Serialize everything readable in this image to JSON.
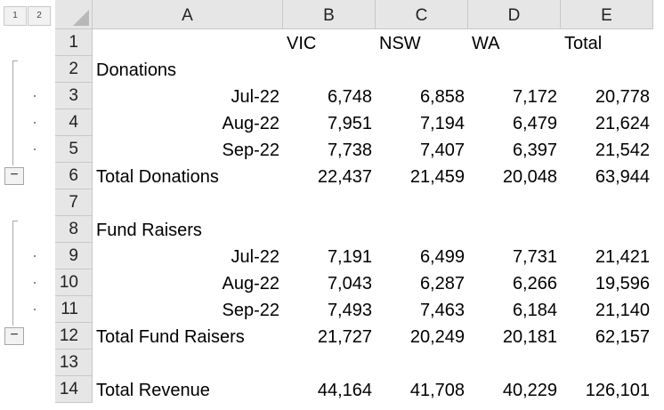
{
  "outline": {
    "level_buttons": [
      "1",
      "2"
    ],
    "collapse_symbol": "−"
  },
  "columns": [
    "A",
    "B",
    "C",
    "D",
    "E"
  ],
  "rows": [
    {
      "num": "1",
      "a": "",
      "b": "VIC",
      "c": "NSW",
      "d": "WA",
      "e": "Total"
    },
    {
      "num": "2",
      "a": "Donations",
      "b": "",
      "c": "",
      "d": "",
      "e": ""
    },
    {
      "num": "3",
      "a": "Jul-22",
      "b": "6,748",
      "c": "6,858",
      "d": "7,172",
      "e": "20,778"
    },
    {
      "num": "4",
      "a": "Aug-22",
      "b": "7,951",
      "c": "7,194",
      "d": "6,479",
      "e": "21,624"
    },
    {
      "num": "5",
      "a": "Sep-22",
      "b": "7,738",
      "c": "7,407",
      "d": "6,397",
      "e": "21,542"
    },
    {
      "num": "6",
      "a": "Total Donations",
      "b": "22,437",
      "c": "21,459",
      "d": "20,048",
      "e": "63,944"
    },
    {
      "num": "7",
      "a": "",
      "b": "",
      "c": "",
      "d": "",
      "e": ""
    },
    {
      "num": "8",
      "a": "Fund Raisers",
      "b": "",
      "c": "",
      "d": "",
      "e": ""
    },
    {
      "num": "9",
      "a": "Jul-22",
      "b": "7,191",
      "c": "6,499",
      "d": "7,731",
      "e": "21,421"
    },
    {
      "num": "10",
      "a": "Aug-22",
      "b": "7,043",
      "c": "6,287",
      "d": "6,266",
      "e": "19,596"
    },
    {
      "num": "11",
      "a": "Sep-22",
      "b": "7,493",
      "c": "7,463",
      "d": "6,184",
      "e": "21,140"
    },
    {
      "num": "12",
      "a": "Total Fund Raisers",
      "b": "21,727",
      "c": "20,249",
      "d": "20,181",
      "e": "62,157"
    },
    {
      "num": "13",
      "a": "",
      "b": "",
      "c": "",
      "d": "",
      "e": ""
    },
    {
      "num": "14",
      "a": "Total Revenue",
      "b": "44,164",
      "c": "41,708",
      "d": "40,229",
      "e": "126,101"
    }
  ]
}
